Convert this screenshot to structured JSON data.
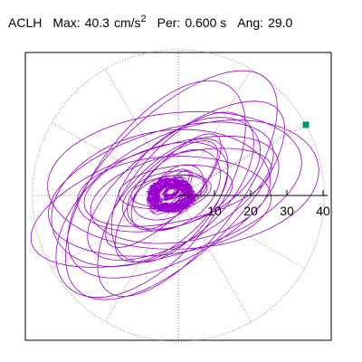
{
  "header": {
    "component": "ACLH",
    "max_label": "Max:",
    "max_value": "40.3",
    "max_unit": "cm/s",
    "max_unit_exp": "2",
    "period_label": "Per:",
    "period_value": "0.600 s",
    "angle_label": "Ang:",
    "angle_value": "29.0"
  },
  "chart_data": {
    "type": "polar-orbit",
    "title": "ACLH  Max: 40.3 cm/s2  Per: 0.600 s  Ang: 29.0",
    "radial_axis": {
      "ticks": [
        10,
        20,
        30,
        40
      ],
      "tick_labels": [
        "10",
        "20",
        "30",
        "40"
      ],
      "max": 40.3,
      "unit": "cm/s2",
      "grid": "dotted"
    },
    "angular_grid_deg": [
      0,
      30,
      60,
      90,
      120,
      150,
      180,
      210,
      240,
      270,
      300,
      330
    ],
    "grid_circle_radii": [
      40.3
    ],
    "max_point": {
      "magnitude": 40.3,
      "angle_deg": 29.0
    },
    "trace_color": "#9900cc",
    "marker_color": "#009977",
    "grid_color": "#888888"
  }
}
